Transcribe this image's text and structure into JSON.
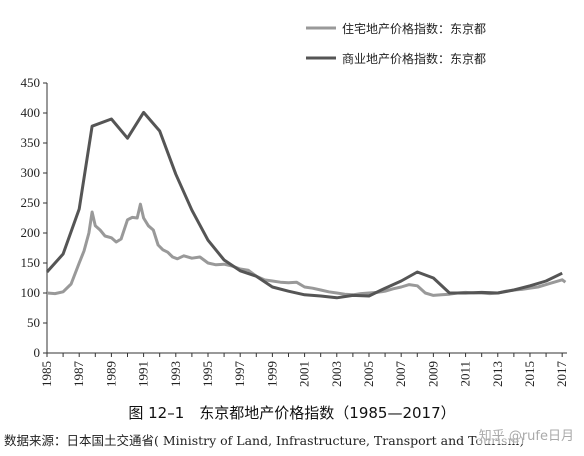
{
  "chart_data": {
    "type": "line",
    "title": "图 12–1　东京都地产价格指数（1985—2017）",
    "source": "数据来源：日本国土交通省( Ministry of Land, Infrastructure, Transport and Tourism)",
    "legend_position": "top-right",
    "ylim": [
      0,
      450
    ],
    "xlim": [
      1985,
      2017.3
    ],
    "y_ticks": [
      0,
      50,
      100,
      150,
      200,
      250,
      300,
      350,
      400,
      450
    ],
    "x_ticks": [
      1985,
      1987,
      1989,
      1991,
      1993,
      1995,
      1997,
      1999,
      2001,
      2003,
      2005,
      2007,
      2009,
      2011,
      2013,
      2015,
      2017
    ],
    "series": [
      {
        "name": "住宅地产价格指数：东京都",
        "color": "#999999",
        "points": [
          [
            1985,
            100
          ],
          [
            1985.5,
            99
          ],
          [
            1986,
            102
          ],
          [
            1986.5,
            115
          ],
          [
            1987,
            150
          ],
          [
            1987.3,
            170
          ],
          [
            1987.6,
            200
          ],
          [
            1987.8,
            235
          ],
          [
            1988,
            212
          ],
          [
            1988.3,
            205
          ],
          [
            1988.6,
            195
          ],
          [
            1989,
            192
          ],
          [
            1989.3,
            185
          ],
          [
            1989.6,
            190
          ],
          [
            1990,
            222
          ],
          [
            1990.3,
            226
          ],
          [
            1990.6,
            225
          ],
          [
            1990.8,
            248
          ],
          [
            1991,
            225
          ],
          [
            1991.3,
            212
          ],
          [
            1991.6,
            205
          ],
          [
            1991.9,
            180
          ],
          [
            1992.2,
            172
          ],
          [
            1992.5,
            168
          ],
          [
            1992.8,
            160
          ],
          [
            1993.1,
            157
          ],
          [
            1993.5,
            162
          ],
          [
            1994,
            158
          ],
          [
            1994.5,
            160
          ],
          [
            1995,
            150
          ],
          [
            1995.5,
            147
          ],
          [
            1996,
            148
          ],
          [
            1996.5,
            145
          ],
          [
            1997,
            140
          ],
          [
            1997.5,
            138
          ],
          [
            1998,
            128
          ],
          [
            1998.5,
            122
          ],
          [
            1999,
            120
          ],
          [
            1999.5,
            118
          ],
          [
            2000,
            117
          ],
          [
            2000.5,
            118
          ],
          [
            2001,
            110
          ],
          [
            2001.5,
            108
          ],
          [
            2002,
            105
          ],
          [
            2002.5,
            102
          ],
          [
            2003,
            100
          ],
          [
            2003.5,
            98
          ],
          [
            2004,
            97
          ],
          [
            2004.5,
            99
          ],
          [
            2005,
            100
          ],
          [
            2005.5,
            101
          ],
          [
            2006,
            103
          ],
          [
            2006.5,
            107
          ],
          [
            2007,
            110
          ],
          [
            2007.5,
            114
          ],
          [
            2008,
            112
          ],
          [
            2008.5,
            100
          ],
          [
            2009,
            96
          ],
          [
            2009.5,
            97
          ],
          [
            2010,
            98
          ],
          [
            2010.5,
            100
          ],
          [
            2011,
            101
          ],
          [
            2011.5,
            100
          ],
          [
            2012,
            100
          ],
          [
            2012.5,
            99
          ],
          [
            2013,
            100
          ],
          [
            2013.5,
            103
          ],
          [
            2014,
            105
          ],
          [
            2014.5,
            106
          ],
          [
            2015,
            108
          ],
          [
            2015.5,
            110
          ],
          [
            2016,
            114
          ],
          [
            2016.5,
            118
          ],
          [
            2017,
            122
          ],
          [
            2017.2,
            118
          ]
        ]
      },
      {
        "name": "商业地产价格指数：东京都",
        "color": "#555555",
        "points": [
          [
            1985,
            135
          ],
          [
            1986,
            165
          ],
          [
            1987,
            240
          ],
          [
            1987.8,
            378
          ],
          [
            1989,
            390
          ],
          [
            1990,
            358
          ],
          [
            1991,
            401
          ],
          [
            1992,
            370
          ],
          [
            1993,
            298
          ],
          [
            1994,
            238
          ],
          [
            1995,
            188
          ],
          [
            1996,
            155
          ],
          [
            1997,
            137
          ],
          [
            1998,
            128
          ],
          [
            1999,
            110
          ],
          [
            2000,
            103
          ],
          [
            2001,
            97
          ],
          [
            2002,
            95
          ],
          [
            2003,
            92
          ],
          [
            2004,
            96
          ],
          [
            2005,
            95
          ],
          [
            2006,
            108
          ],
          [
            2007,
            120
          ],
          [
            2008,
            135
          ],
          [
            2009,
            125
          ],
          [
            2010,
            100
          ],
          [
            2011,
            100
          ],
          [
            2012,
            101
          ],
          [
            2013,
            100
          ],
          [
            2014,
            105
          ],
          [
            2015,
            112
          ],
          [
            2016,
            120
          ],
          [
            2017,
            133
          ]
        ]
      }
    ]
  },
  "watermark": "知乎 @rufe日月"
}
